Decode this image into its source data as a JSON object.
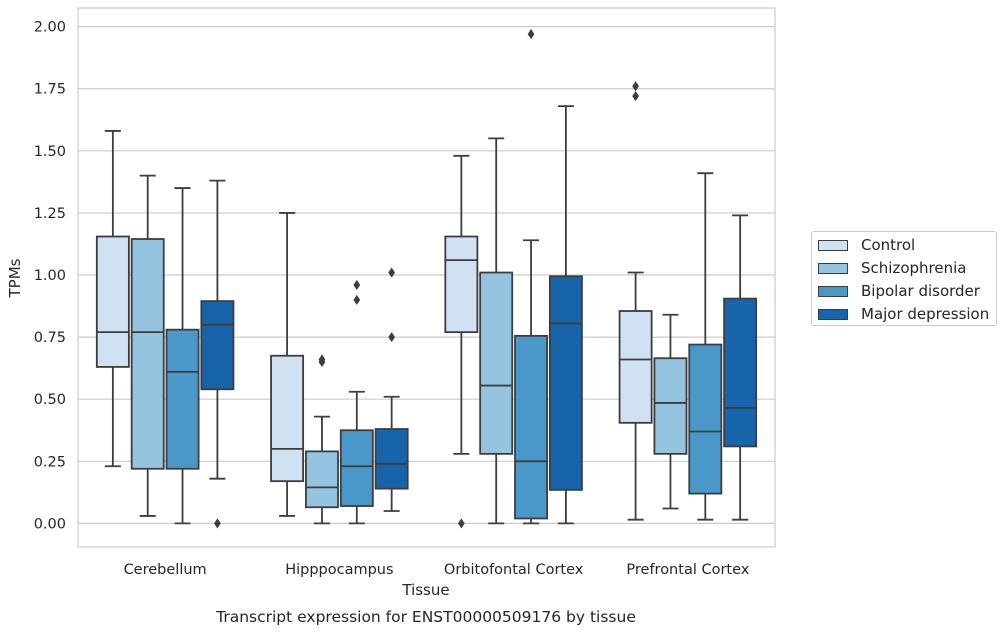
{
  "chart_data": {
    "type": "box",
    "title": "Transcript expression for ENST00000509176 by tissue",
    "xlabel": "Tissue",
    "ylabel": "TPMs",
    "ylim": [
      -0.095,
      2.075
    ],
    "yticks": [
      "0.00",
      "0.25",
      "0.50",
      "0.75",
      "1.00",
      "1.25",
      "1.50",
      "1.75",
      "2.00"
    ],
    "ytick_values": [
      0,
      0.25,
      0.5,
      0.75,
      1.0,
      1.25,
      1.5,
      1.75,
      2.0
    ],
    "grid": "horizontal",
    "legend_position": "right",
    "categories": [
      "Cerebellum",
      "Hipppocampus",
      "Orbitofontal Cortex",
      "Prefrontal Cortex"
    ],
    "series": [
      {
        "name": "Control",
        "color": "#d0e1f2",
        "boxes": [
          {
            "whislo": 0.23,
            "q1": 0.63,
            "med": 0.77,
            "q3": 1.155,
            "whishi": 1.58,
            "fliers": []
          },
          {
            "whislo": 0.03,
            "q1": 0.17,
            "med": 0.3,
            "q3": 0.675,
            "whishi": 1.25,
            "fliers": []
          },
          {
            "whislo": 0.28,
            "q1": 0.77,
            "med": 1.06,
            "q3": 1.155,
            "whishi": 1.48,
            "fliers": [
              0.0
            ]
          },
          {
            "whislo": 0.015,
            "q1": 0.405,
            "med": 0.66,
            "q3": 0.855,
            "whishi": 1.01,
            "fliers": [
              1.72,
              1.76
            ]
          }
        ]
      },
      {
        "name": "Schizophrenia",
        "color": "#94c4df",
        "boxes": [
          {
            "whislo": 0.03,
            "q1": 0.22,
            "med": 0.77,
            "q3": 1.145,
            "whishi": 1.4,
            "fliers": []
          },
          {
            "whislo": 0.0,
            "q1": 0.065,
            "med": 0.145,
            "q3": 0.29,
            "whishi": 0.43,
            "fliers": [
              0.65,
              0.66
            ]
          },
          {
            "whislo": 0.0,
            "q1": 0.28,
            "med": 0.555,
            "q3": 1.01,
            "whishi": 1.55,
            "fliers": []
          },
          {
            "whislo": 0.06,
            "q1": 0.28,
            "med": 0.485,
            "q3": 0.665,
            "whishi": 0.84,
            "fliers": []
          }
        ]
      },
      {
        "name": "Bipolar disorder",
        "color": "#4a98c9",
        "boxes": [
          {
            "whislo": 0.0,
            "q1": 0.22,
            "med": 0.61,
            "q3": 0.78,
            "whishi": 1.35,
            "fliers": []
          },
          {
            "whislo": 0.0,
            "q1": 0.07,
            "med": 0.23,
            "q3": 0.375,
            "whishi": 0.53,
            "fliers": [
              0.9,
              0.96
            ]
          },
          {
            "whislo": 0.0,
            "q1": 0.02,
            "med": 0.25,
            "q3": 0.755,
            "whishi": 1.14,
            "fliers": [
              1.97
            ]
          },
          {
            "whislo": 0.015,
            "q1": 0.12,
            "med": 0.37,
            "q3": 0.72,
            "whishi": 1.41,
            "fliers": []
          }
        ]
      },
      {
        "name": "Major depression",
        "color": "#1764ab",
        "boxes": [
          {
            "whislo": 0.18,
            "q1": 0.54,
            "med": 0.8,
            "q3": 0.895,
            "whishi": 1.38,
            "fliers": [
              0.0
            ]
          },
          {
            "whislo": 0.05,
            "q1": 0.14,
            "med": 0.24,
            "q3": 0.38,
            "whishi": 0.51,
            "fliers": [
              0.75,
              1.01
            ]
          },
          {
            "whislo": 0.0,
            "q1": 0.135,
            "med": 0.805,
            "q3": 0.995,
            "whishi": 1.68,
            "fliers": []
          },
          {
            "whislo": 0.015,
            "q1": 0.31,
            "med": 0.465,
            "q3": 0.905,
            "whishi": 1.24,
            "fliers": []
          }
        ]
      }
    ]
  }
}
